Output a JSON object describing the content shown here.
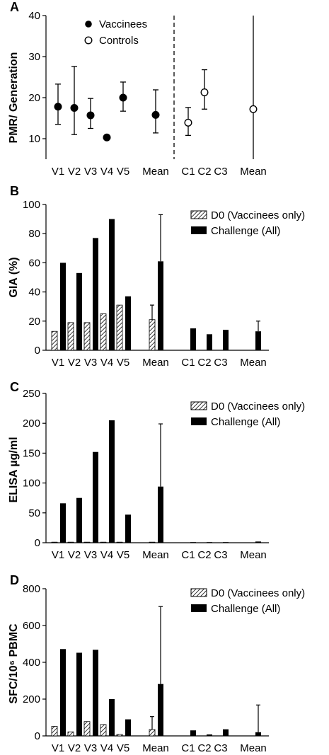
{
  "chart_data": [
    {
      "panel": "A",
      "type": "scatter",
      "ylabel": "PMR/ Generation",
      "ylim": [
        5,
        40
      ],
      "yticks": [
        10,
        20,
        30,
        40
      ],
      "categories": [
        "V1",
        "V2",
        "V3",
        "V4",
        "V5",
        "Mean",
        "C1",
        "C2",
        "C3",
        "Mean"
      ],
      "legend": [
        "Vaccinees",
        "Controls"
      ],
      "series": [
        {
          "name": "Vaccinees",
          "marker": "filled",
          "points": [
            {
              "cat": 0,
              "y": 17.8,
              "lo": 13.5,
              "hi": 23.3
            },
            {
              "cat": 1,
              "y": 17.5,
              "lo": 11.0,
              "hi": 27.6
            },
            {
              "cat": 2,
              "y": 15.7,
              "lo": 12.5,
              "hi": 19.8
            },
            {
              "cat": 3,
              "y": 10.3
            },
            {
              "cat": 4,
              "y": 20.0,
              "lo": 16.7,
              "hi": 23.8
            },
            {
              "cat": 5,
              "y": 15.8,
              "lo": 11.4,
              "hi": 21.9
            }
          ]
        },
        {
          "name": "Controls",
          "marker": "open",
          "points": [
            {
              "cat": 6,
              "y": 13.9,
              "lo": 10.8,
              "hi": 17.6
            },
            {
              "cat": 7,
              "y": 21.3,
              "lo": 17.2,
              "hi": 26.8
            },
            {
              "cat": 9,
              "y": 17.2,
              "lo": 5,
              "hi": 40
            }
          ]
        }
      ]
    },
    {
      "panel": "B",
      "type": "bar",
      "ylabel": "GIA (%)",
      "ylim": [
        0,
        100
      ],
      "yticks": [
        0,
        20,
        40,
        60,
        80,
        100
      ],
      "categories": [
        "V1",
        "V2",
        "V3",
        "V4",
        "V5",
        "Mean",
        "C1",
        "C2",
        "C3",
        "Mean"
      ],
      "legend": [
        "D0 (Vaccinees only)",
        "Challenge (All)"
      ],
      "series": [
        {
          "name": "D0 (Vaccinees only)",
          "pattern": "hatch",
          "values": [
            13,
            19,
            19,
            25,
            31,
            21,
            null,
            null,
            null,
            null
          ],
          "error_hi": [
            null,
            null,
            null,
            null,
            null,
            31,
            null,
            null,
            null,
            null
          ]
        },
        {
          "name": "Challenge (All)",
          "pattern": "solid",
          "values": [
            60,
            53,
            77,
            90,
            37,
            61,
            15,
            11,
            14,
            13
          ],
          "error_hi": [
            null,
            null,
            null,
            null,
            null,
            93,
            null,
            null,
            null,
            20
          ]
        }
      ]
    },
    {
      "panel": "C",
      "type": "bar",
      "ylabel": "ELISA µg/ml",
      "ylim": [
        0,
        250
      ],
      "yticks": [
        0,
        50,
        100,
        150,
        200,
        250
      ],
      "categories": [
        "V1",
        "V2",
        "V3",
        "V4",
        "V5",
        "Mean",
        "C1",
        "C2",
        "C3",
        "Mean"
      ],
      "legend": [
        "D0 (Vaccinees only)",
        "Challenge (All)"
      ],
      "series": [
        {
          "name": "D0 (Vaccinees only)",
          "pattern": "hatch",
          "values": [
            1,
            1,
            1,
            1,
            1,
            1,
            null,
            null,
            null,
            null
          ],
          "error_hi": [
            null,
            null,
            null,
            null,
            null,
            null,
            null,
            null,
            null,
            null
          ]
        },
        {
          "name": "Challenge (All)",
          "pattern": "solid",
          "values": [
            66,
            75,
            152,
            205,
            47,
            94,
            1,
            1,
            1,
            2
          ],
          "error_hi": [
            null,
            null,
            null,
            null,
            null,
            199,
            null,
            null,
            null,
            null
          ]
        }
      ]
    },
    {
      "panel": "D",
      "type": "bar",
      "ylabel": "SFC/10⁶ PBMC",
      "ylim": [
        0,
        800
      ],
      "yticks": [
        0,
        200,
        400,
        600,
        800
      ],
      "categories": [
        "V1",
        "V2",
        "V3",
        "V4",
        "V5",
        "Mean",
        "C1",
        "C2",
        "C3",
        "Mean"
      ],
      "legend": [
        "D0 (Vaccinees only)",
        "Challenge (All)"
      ],
      "series": [
        {
          "name": "D0 (Vaccinees only)",
          "pattern": "hatch",
          "values": [
            52,
            22,
            78,
            62,
            8,
            35,
            null,
            null,
            null,
            null
          ],
          "error_hi": [
            null,
            null,
            null,
            null,
            null,
            105,
            null,
            null,
            null,
            null
          ]
        },
        {
          "name": "Challenge (All)",
          "pattern": "solid",
          "values": [
            472,
            452,
            468,
            200,
            90,
            282,
            30,
            8,
            36,
            20
          ],
          "error_hi": [
            null,
            null,
            null,
            null,
            null,
            703,
            null,
            null,
            null,
            168
          ]
        }
      ]
    }
  ]
}
